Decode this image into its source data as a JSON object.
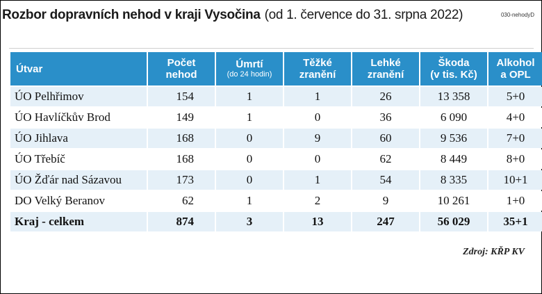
{
  "title": {
    "main": "Rozbor dopravních nehod v kraji Vysočina",
    "sub": "(od 1. července do 31. srpna 2022)"
  },
  "code": "030-nehodyD",
  "headers": {
    "c0": "Útvar",
    "c1_line1": "Počet",
    "c1_line2": "nehod",
    "c2_line1": "Úmrtí",
    "c2_line2": "(do 24 hodin)",
    "c3_line1": "Těžké",
    "c3_line2": "zranění",
    "c4_line1": "Lehké",
    "c4_line2": "zranění",
    "c5_line1": "Škoda",
    "c5_line2": "(v tis. Kč)",
    "c6_line1": "Alkohol",
    "c6_line2": "a OPL"
  },
  "rows": [
    {
      "name": "ÚO Pelhřimov",
      "nehody": "154",
      "umrti": "1",
      "tezke": "1",
      "lehke": "26",
      "skoda": "13 358",
      "alkohol": "5+0"
    },
    {
      "name": "ÚO Havlíčkův Brod",
      "nehody": "149",
      "umrti": "1",
      "tezke": "0",
      "lehke": "36",
      "skoda": "6 090",
      "alkohol": "4+0"
    },
    {
      "name": "ÚO Jihlava",
      "nehody": "168",
      "umrti": "0",
      "tezke": "9",
      "lehke": "60",
      "skoda": "9 536",
      "alkohol": "7+0"
    },
    {
      "name": "ÚO Třebíč",
      "nehody": "168",
      "umrti": "0",
      "tezke": "0",
      "lehke": "62",
      "skoda": "8 449",
      "alkohol": "8+0"
    },
    {
      "name": "ÚO Žďár nad Sázavou",
      "nehody": "173",
      "umrti": "0",
      "tezke": "1",
      "lehke": "54",
      "skoda": "8 335",
      "alkohol": "10+1"
    },
    {
      "name": "DO Velký Beranov",
      "nehody": "62",
      "umrti": "1",
      "tezke": "2",
      "lehke": "9",
      "skoda": "10 261",
      "alkohol": "1+0"
    }
  ],
  "total": {
    "name": "Kraj - celkem",
    "nehody": "874",
    "umrti": "3",
    "tezke": "13",
    "lehke": "247",
    "skoda": "56 029",
    "alkohol": "35+1"
  },
  "source": "Zdroj: KŘP KV"
}
